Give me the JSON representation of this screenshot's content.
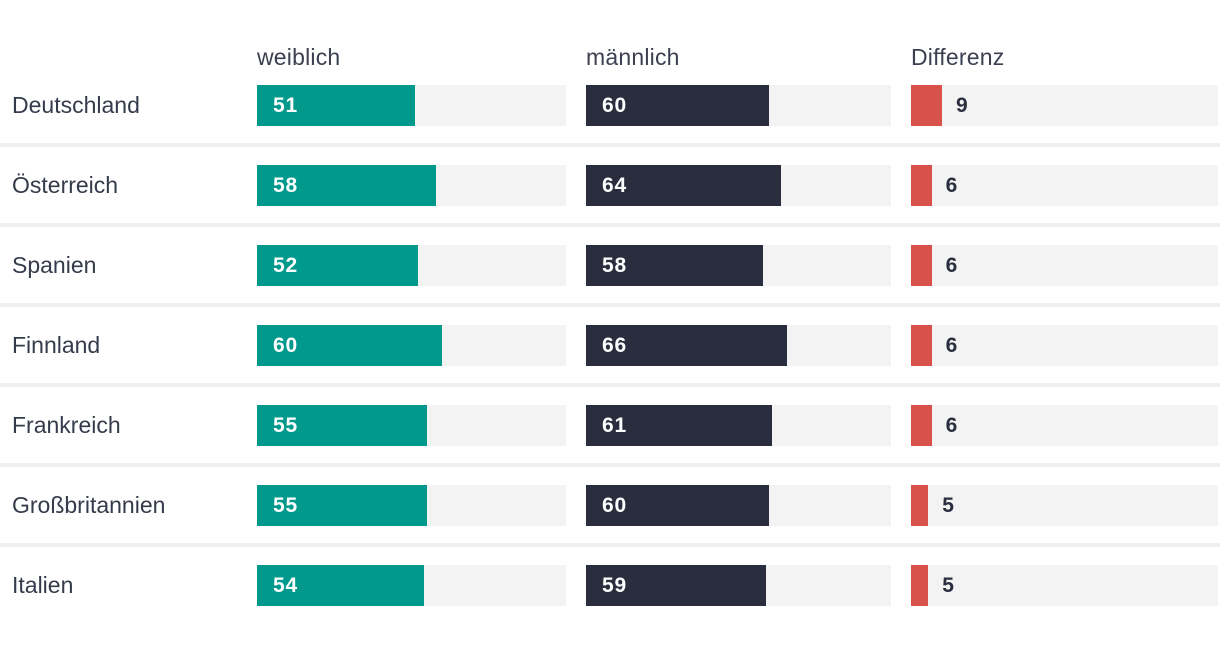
{
  "chart_data": {
    "type": "bar",
    "title": "",
    "layout": "horizontal grouped bars by country with difference column",
    "columns": {
      "weiblich": "weiblich",
      "maennlich": "männlich",
      "differenz": "Differenz"
    },
    "xlim": [
      0,
      100
    ],
    "grid": false,
    "categories": [
      "Deutschland",
      "Österreich",
      "Spanien",
      "Finnland",
      "Frankreich",
      "Großbritannien",
      "Italien"
    ],
    "series": [
      {
        "name": "weiblich",
        "color": "#00998c",
        "values": [
          51,
          58,
          52,
          60,
          55,
          55,
          54
        ]
      },
      {
        "name": "männlich",
        "color": "#2a2d3e",
        "values": [
          60,
          64,
          58,
          66,
          61,
          60,
          59
        ]
      },
      {
        "name": "Differenz",
        "color": "#d8514a",
        "values": [
          9,
          6,
          6,
          6,
          6,
          5,
          5
        ]
      }
    ],
    "rows": [
      {
        "country": "Deutschland",
        "weiblich": 51,
        "maennlich": 60,
        "differenz": 9
      },
      {
        "country": "Österreich",
        "weiblich": 58,
        "maennlich": 64,
        "differenz": 6
      },
      {
        "country": "Spanien",
        "weiblich": 52,
        "maennlich": 58,
        "differenz": 6
      },
      {
        "country": "Finnland",
        "weiblich": 60,
        "maennlich": 66,
        "differenz": 6
      },
      {
        "country": "Frankreich",
        "weiblich": 55,
        "maennlich": 61,
        "differenz": 6
      },
      {
        "country": "Großbritannien",
        "weiblich": 55,
        "maennlich": 60,
        "differenz": 5
      },
      {
        "country": "Italien",
        "weiblich": 54,
        "maennlich": 59,
        "differenz": 5
      }
    ],
    "colors": {
      "weiblich": "#00998c",
      "maennlich": "#2a2d3e",
      "differenz": "#d8514a",
      "track": "#f3f3f3",
      "divider": "#efefef",
      "text": "#363b4b"
    }
  }
}
